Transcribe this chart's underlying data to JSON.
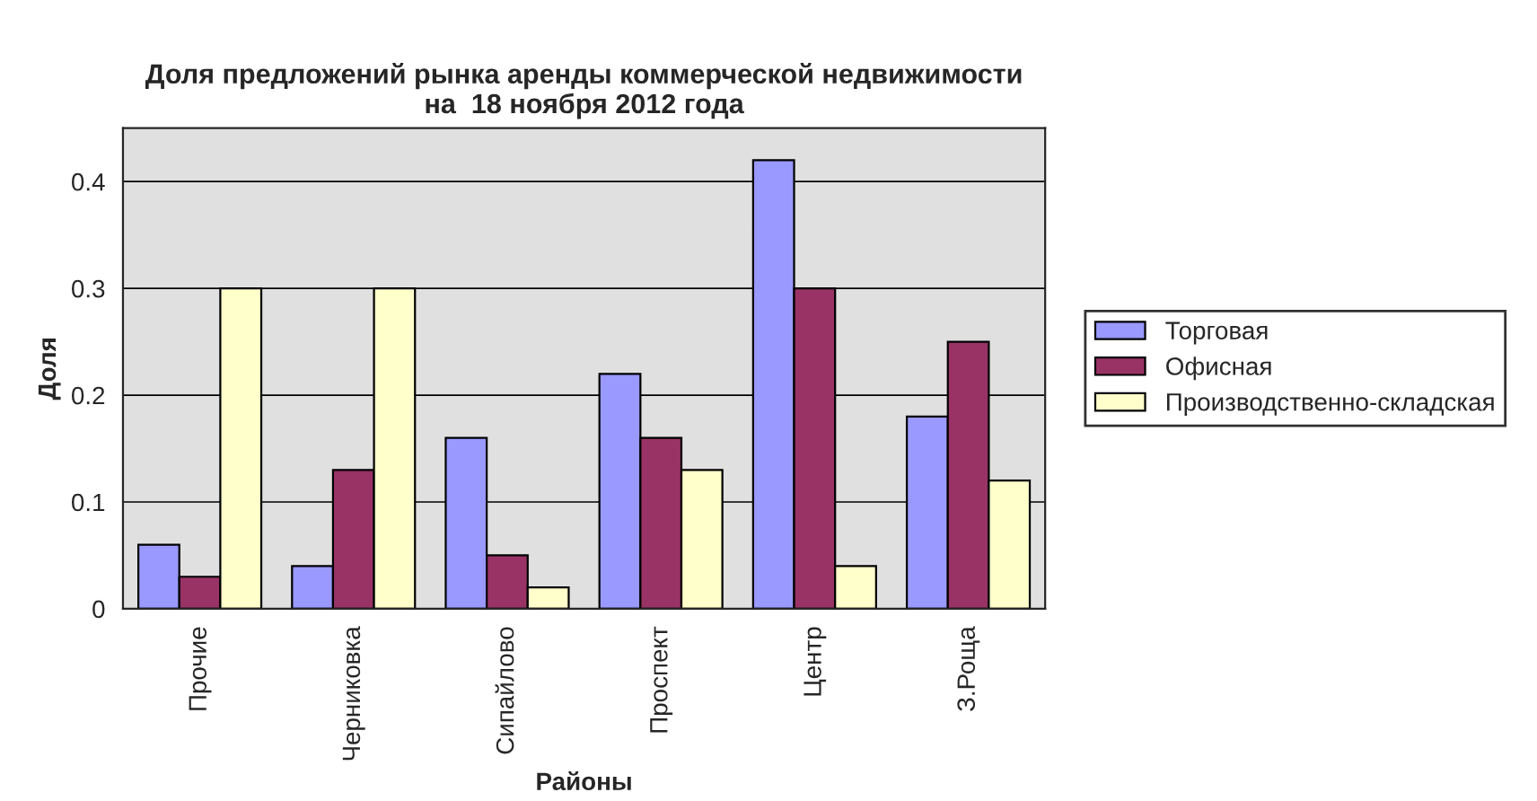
{
  "chart_data": {
    "type": "bar",
    "title": "Доля предложений рынка аренды коммерческой недвижимости\nна  18 ноября 2012 года",
    "xlabel": "Районы",
    "ylabel": "Доля",
    "categories": [
      "Прочие",
      "Черниковка",
      "Сипайлово",
      "Проспект",
      "Центр",
      "З.Роща"
    ],
    "series": [
      {
        "name": "Торговая",
        "color": "#9999ff",
        "values": [
          0.06,
          0.04,
          0.16,
          0.22,
          0.42,
          0.18
        ]
      },
      {
        "name": "Офисная",
        "color": "#993366",
        "values": [
          0.03,
          0.13,
          0.05,
          0.16,
          0.3,
          0.25
        ]
      },
      {
        "name": "Производственно-складская",
        "color": "#ffffcc",
        "values": [
          0.3,
          0.3,
          0.02,
          0.13,
          0.04,
          0.12
        ]
      }
    ],
    "ylim": [
      0,
      0.45
    ],
    "yticks": [
      0,
      0.1,
      0.2,
      0.3,
      0.4
    ],
    "grid": "y",
    "legend": "right"
  }
}
